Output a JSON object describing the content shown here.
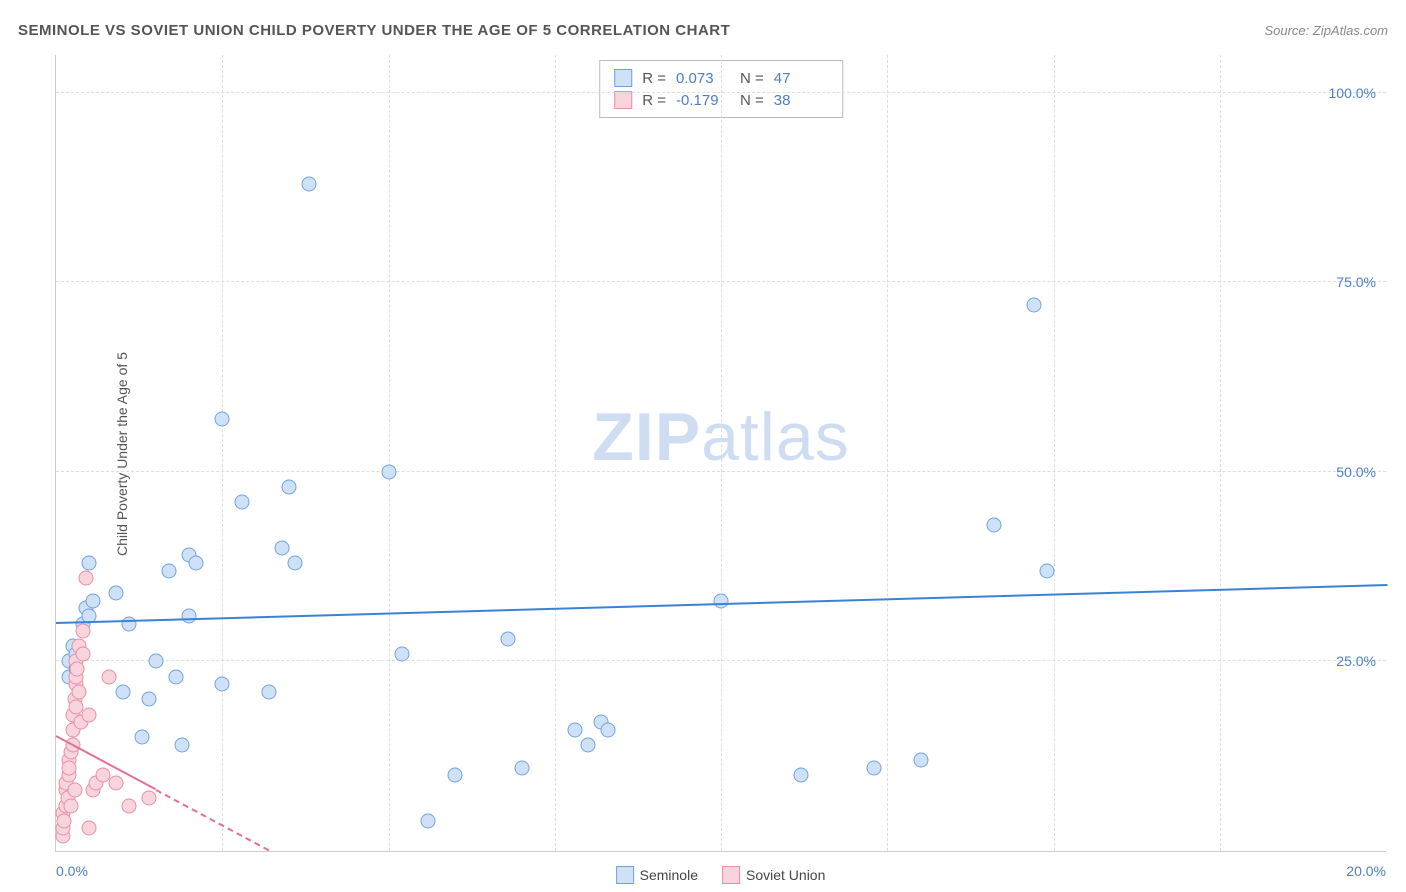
{
  "title": "SEMINOLE VS SOVIET UNION CHILD POVERTY UNDER THE AGE OF 5 CORRELATION CHART",
  "source": "Source: ZipAtlas.com",
  "ylabel": "Child Poverty Under the Age of 5",
  "watermark_bold": "ZIP",
  "watermark_rest": "atlas",
  "chart": {
    "type": "scatter",
    "xlim": [
      0,
      20
    ],
    "ylim": [
      0,
      105
    ],
    "xticks": [
      0,
      5,
      10,
      20
    ],
    "xtick_labels": [
      "0.0%",
      "",
      "",
      "20.0%"
    ],
    "yticks": [
      25,
      50,
      75,
      100
    ],
    "ytick_labels": [
      "25.0%",
      "50.0%",
      "75.0%",
      "100.0%"
    ],
    "xgrid_positions": [
      2.5,
      5,
      7.5,
      10,
      12.5,
      15,
      17.5
    ],
    "background": "#ffffff",
    "grid_color": "#dddddd",
    "axis_color": "#cccccc",
    "marker_size": 15,
    "series": [
      {
        "name": "Seminole",
        "fill": "#cfe1f7",
        "stroke": "#6fa3dd",
        "stat_R": "0.073",
        "stat_N": "47",
        "regression": {
          "x1": 0,
          "y1": 30,
          "x2": 20,
          "y2": 35,
          "dashed_after": null,
          "color": "#3b82d6"
        },
        "points": [
          [
            0.2,
            25
          ],
          [
            0.2,
            23
          ],
          [
            0.25,
            27
          ],
          [
            0.3,
            24
          ],
          [
            0.3,
            26
          ],
          [
            0.4,
            30
          ],
          [
            0.45,
            32
          ],
          [
            0.5,
            38
          ],
          [
            0.5,
            31
          ],
          [
            0.55,
            33
          ],
          [
            0.9,
            34
          ],
          [
            1.0,
            21
          ],
          [
            1.1,
            30
          ],
          [
            1.3,
            15
          ],
          [
            1.4,
            20
          ],
          [
            1.5,
            25
          ],
          [
            1.7,
            37
          ],
          [
            1.8,
            23
          ],
          [
            1.9,
            14
          ],
          [
            2.0,
            31
          ],
          [
            2.0,
            39
          ],
          [
            2.1,
            38
          ],
          [
            2.5,
            22
          ],
          [
            2.5,
            57
          ],
          [
            2.8,
            46
          ],
          [
            3.2,
            21
          ],
          [
            3.4,
            40
          ],
          [
            3.5,
            48
          ],
          [
            3.6,
            38
          ],
          [
            3.8,
            88
          ],
          [
            5.0,
            50
          ],
          [
            5.2,
            26
          ],
          [
            5.6,
            4
          ],
          [
            6.0,
            10
          ],
          [
            6.8,
            28
          ],
          [
            7.0,
            11
          ],
          [
            7.8,
            16
          ],
          [
            8.0,
            14
          ],
          [
            8.2,
            17
          ],
          [
            8.3,
            16
          ],
          [
            10.0,
            33
          ],
          [
            11.2,
            10
          ],
          [
            12.3,
            11
          ],
          [
            13.0,
            12
          ],
          [
            14.1,
            43
          ],
          [
            14.7,
            72
          ],
          [
            14.9,
            37
          ]
        ]
      },
      {
        "name": "Soviet Union",
        "fill": "#f8d4dd",
        "stroke": "#e88fa7",
        "stat_R": "-0.179",
        "stat_N": "38",
        "regression": {
          "x1": 0,
          "y1": 15,
          "x2": 3.2,
          "y2": 0,
          "dashed_after": 1.5,
          "color": "#e27095"
        },
        "points": [
          [
            0.1,
            2
          ],
          [
            0.1,
            3
          ],
          [
            0.1,
            5
          ],
          [
            0.12,
            4
          ],
          [
            0.15,
            6
          ],
          [
            0.15,
            8
          ],
          [
            0.15,
            9
          ],
          [
            0.18,
            7
          ],
          [
            0.2,
            10
          ],
          [
            0.2,
            12
          ],
          [
            0.2,
            11
          ],
          [
            0.22,
            6
          ],
          [
            0.22,
            13
          ],
          [
            0.25,
            14
          ],
          [
            0.25,
            16
          ],
          [
            0.25,
            18
          ],
          [
            0.28,
            8
          ],
          [
            0.28,
            20
          ],
          [
            0.3,
            22
          ],
          [
            0.3,
            19
          ],
          [
            0.3,
            25
          ],
          [
            0.3,
            23
          ],
          [
            0.32,
            24
          ],
          [
            0.35,
            27
          ],
          [
            0.35,
            21
          ],
          [
            0.38,
            17
          ],
          [
            0.4,
            29
          ],
          [
            0.4,
            26
          ],
          [
            0.45,
            36
          ],
          [
            0.5,
            18
          ],
          [
            0.5,
            3
          ],
          [
            0.55,
            8
          ],
          [
            0.6,
            9
          ],
          [
            0.7,
            10
          ],
          [
            0.8,
            23
          ],
          [
            0.9,
            9
          ],
          [
            1.1,
            6
          ],
          [
            1.4,
            7
          ]
        ]
      }
    ]
  }
}
